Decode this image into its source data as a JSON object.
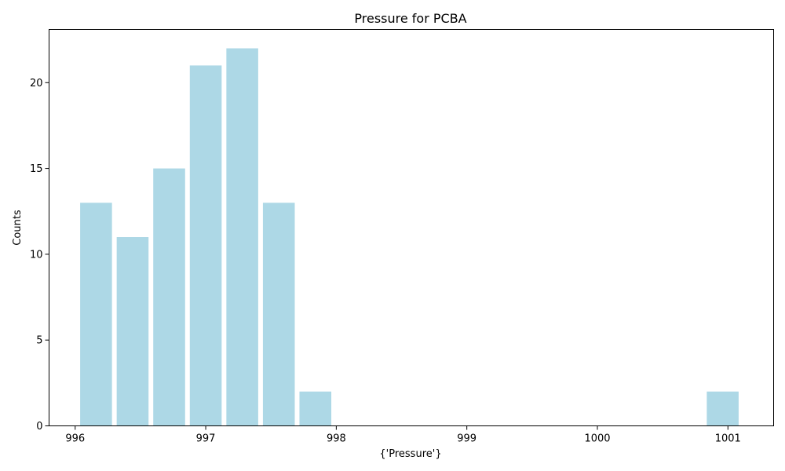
{
  "chart_data": {
    "type": "bar",
    "title": "Pressure for PCBA",
    "xlabel": "{'Pressure'}",
    "ylabel": "Counts",
    "bar_color": "#add8e6",
    "bin_width": 0.28,
    "bins": [
      {
        "x_start": 996.02,
        "x_end": 996.3,
        "count": 13
      },
      {
        "x_start": 996.3,
        "x_end": 996.58,
        "count": 11
      },
      {
        "x_start": 996.58,
        "x_end": 996.86,
        "count": 15
      },
      {
        "x_start": 996.86,
        "x_end": 997.14,
        "count": 21
      },
      {
        "x_start": 997.14,
        "x_end": 997.42,
        "count": 22
      },
      {
        "x_start": 997.42,
        "x_end": 997.7,
        "count": 13
      },
      {
        "x_start": 997.7,
        "x_end": 997.98,
        "count": 2
      },
      {
        "x_start": 1000.82,
        "x_end": 1001.1,
        "count": 2
      }
    ],
    "xlim": [
      995.8,
      1001.35
    ],
    "ylim": [
      0,
      23.1
    ],
    "x_ticks": [
      996,
      997,
      998,
      999,
      1000,
      1001
    ],
    "x_tick_labels": [
      "996",
      "997",
      "998",
      "999",
      "1000",
      "1001"
    ],
    "y_ticks": [
      0,
      5,
      10,
      15,
      20
    ],
    "y_tick_labels": [
      "0",
      "5",
      "10",
      "15",
      "20"
    ],
    "grid": false,
    "legend": "none"
  }
}
